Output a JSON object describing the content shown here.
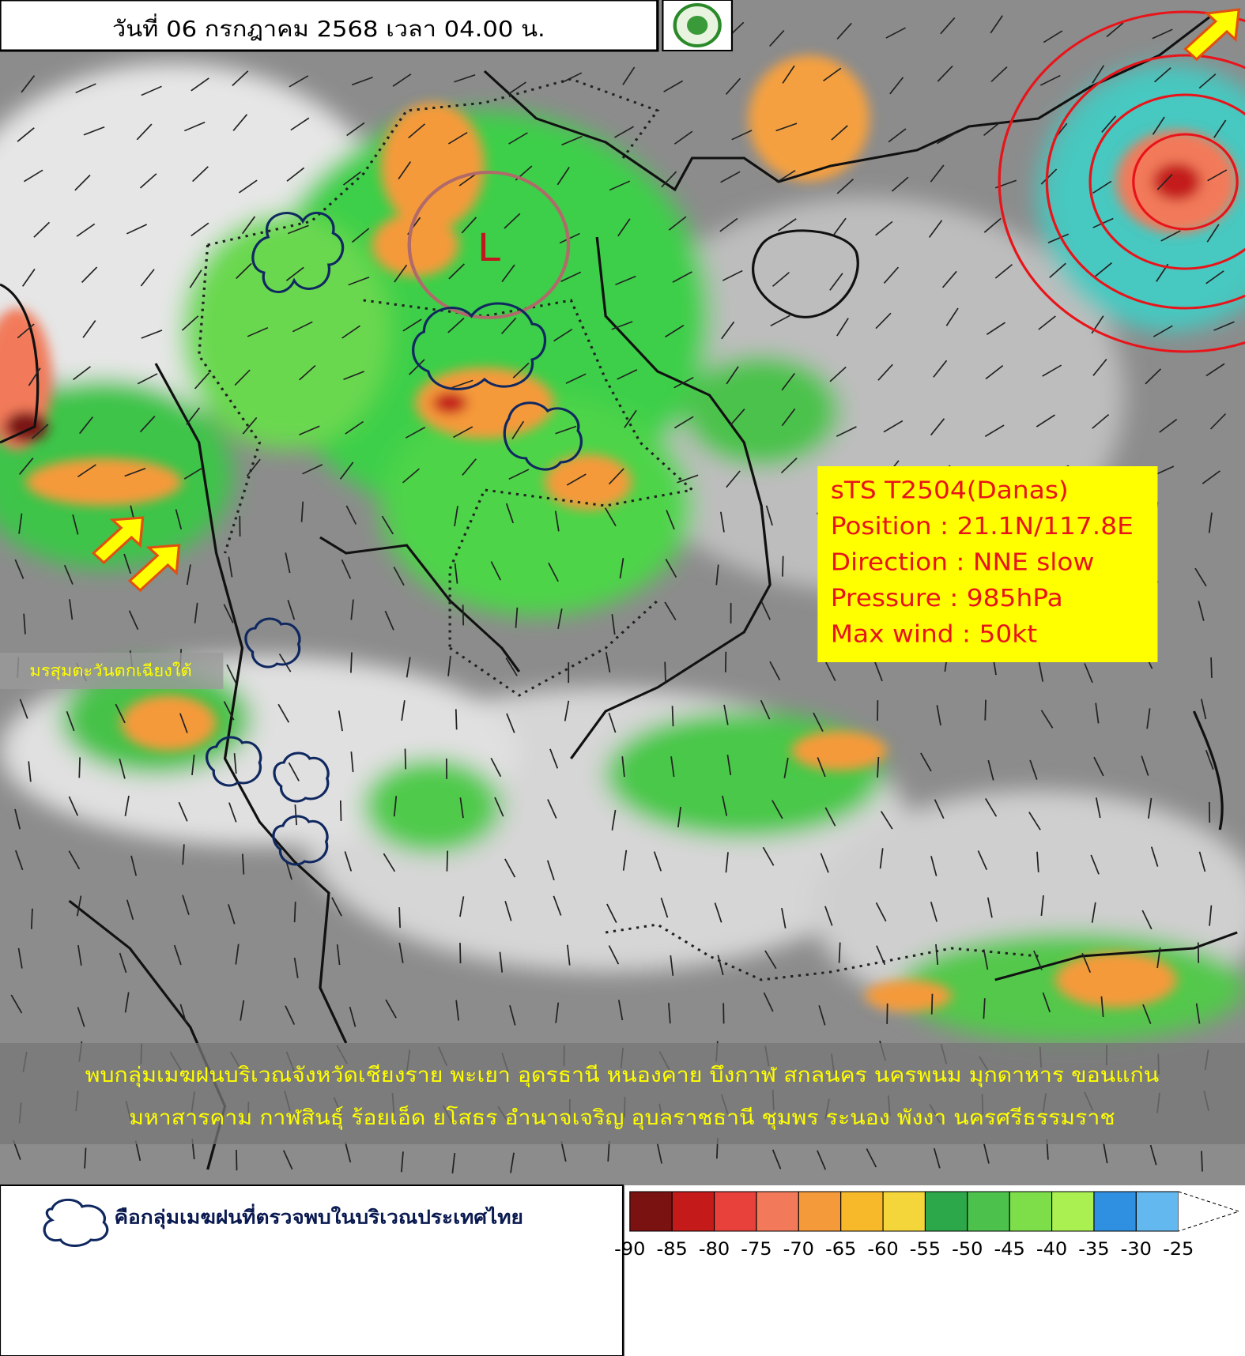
{
  "header": {
    "title": "วันที่ 06 กรกฎาคม 2568 เวลา 04.00 น."
  },
  "storm": {
    "lines": [
      "sTS T2504(Danas)",
      "Position : 21.1N/117.8E",
      "Direction : NNE slow",
      "Pressure : 985hPa",
      "Max wind : 50kt"
    ]
  },
  "monsoon_label": "มรสุมตะวันตกเฉียงใต้",
  "low_label": "L",
  "bulletin": {
    "lines": [
      "พบกลุ่มเมฆฝนบริเวณจังหวัดเชียงราย พะเยา อุดรธานี หนองคาย บึงกาฬ สกลนคร นครพนม มุกดาหาร ขอนแก่น",
      "มหาสารคาม กาฬสินธุ์ ร้อยเอ็ด ยโสธร อำนาจเจริญ อุบลราชธานี ชุมพร ระนอง พังงา นครศรีธรรมราช"
    ]
  },
  "legend": {
    "text": "คือกลุ่มเมฆฝนที่ตรวจพบในบริเวณประเทศไทย"
  },
  "colorbar": {
    "labels": [
      -90,
      -85,
      -80,
      -75,
      -70,
      -65,
      -60,
      -55,
      -50,
      -45,
      -40,
      -35,
      -30,
      -25
    ],
    "colors": [
      "#7a1212",
      "#c41a1a",
      "#e8403a",
      "#f27a5a",
      "#f59a3a",
      "#f7b82a",
      "#f5d63a",
      "#2ca84a",
      "#4cc24c",
      "#7ede4a",
      "#aaf050",
      "#2f8fe0",
      "#64b8f0"
    ]
  }
}
